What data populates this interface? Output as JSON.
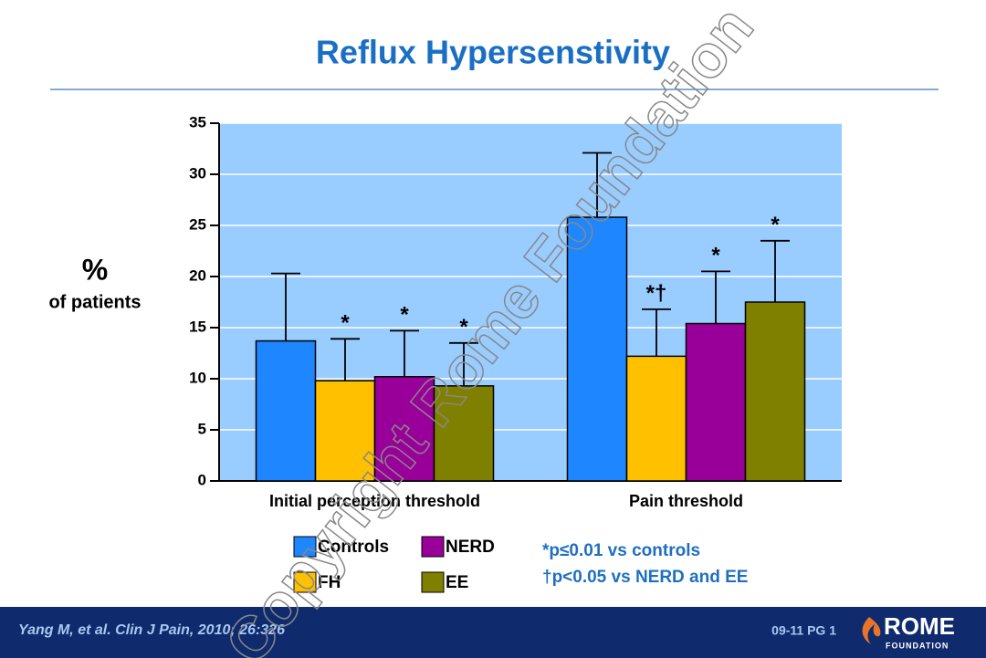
{
  "chart_data": {
    "type": "bar",
    "title": "Reflux Hypersenstivity",
    "y_label": [
      "%",
      "of patients"
    ],
    "categories": [
      "Initial perception threshold",
      "Pain threshold"
    ],
    "series": [
      {
        "name": "Controls",
        "color": "#1e86ff",
        "values": [
          13.7,
          25.8
        ],
        "errors": [
          6.6,
          6.3
        ],
        "significance": [
          null,
          null
        ]
      },
      {
        "name": "FH",
        "color": "#ffc000",
        "values": [
          9.8,
          12.2
        ],
        "errors": [
          4.1,
          4.6
        ],
        "significance": [
          "*",
          "*†"
        ]
      },
      {
        "name": "NERD",
        "color": "#990099",
        "values": [
          10.2,
          15.4
        ],
        "errors": [
          4.5,
          5.1
        ],
        "significance": [
          "*",
          "*"
        ]
      },
      {
        "name": "EE",
        "color": "#808000",
        "values": [
          9.3,
          17.5
        ],
        "errors": [
          4.2,
          6.0
        ],
        "significance": [
          "*",
          "*"
        ]
      }
    ],
    "ylim": [
      0,
      35
    ],
    "yticks": [
      0,
      5,
      10,
      15,
      20,
      25,
      30,
      35
    ],
    "grid": true,
    "footnotes": [
      "*p≤0.01 vs controls",
      "†p<0.05 vs NERD and EE"
    ]
  },
  "footer": {
    "citation": "Yang M, et al. Clin J Pain, 2010; 26:326",
    "page": "09-11  PG 1",
    "logo": "ROME",
    "logo_sub": "FOUNDATION"
  },
  "watermark": "Copyright Rome Foundation"
}
